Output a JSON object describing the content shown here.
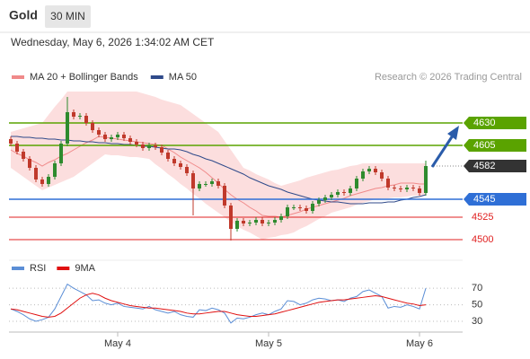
{
  "header": {
    "symbol": "Gold",
    "interval": "30 MIN",
    "date": "Wednesday, May 6, 2026 1:34:02 AM CET",
    "source": "Research © 2026 Trading Central"
  },
  "chart_data": [
    {
      "type": "candlestick",
      "categories": [
        null,
        null,
        null,
        null,
        null,
        null,
        null,
        null,
        null,
        null,
        null,
        null,
        null,
        null,
        null,
        null,
        null,
        "May 4",
        null,
        null,
        null,
        null,
        null,
        null,
        null,
        null,
        null,
        null,
        null,
        null,
        null,
        null,
        null,
        null,
        null,
        null,
        null,
        null,
        null,
        null,
        null,
        "May 5",
        null,
        null,
        null,
        null,
        null,
        null,
        null,
        null,
        null,
        null,
        null,
        null,
        null,
        null,
        null,
        null,
        null,
        null,
        null,
        null,
        null,
        null,
        null,
        "May 6",
        null
      ],
      "open": [
        4612,
        4607,
        4598,
        4590,
        4580,
        4567,
        4562,
        4570,
        4585,
        4607,
        4642,
        4637,
        4638,
        4630,
        4622,
        4617,
        4612,
        4614,
        4617,
        4613,
        4609,
        4606,
        4602,
        4605,
        4603,
        4597,
        4590,
        4585,
        4581,
        4574,
        4557,
        4562,
        4562,
        4565,
        4560,
        4538,
        4512,
        4521,
        4518,
        4519,
        4522,
        4518,
        4519,
        4522,
        4526,
        4536,
        4536,
        4535,
        4532,
        4540,
        4544,
        4547,
        4550,
        4553,
        4552,
        4557,
        4568,
        4576,
        4579,
        4575,
        4568,
        4558,
        4557,
        4556,
        4558,
        4557,
        4552
      ],
      "high": [
        4615,
        4610,
        4601,
        4593,
        4583,
        4570,
        4573,
        4588,
        4610,
        4659,
        4645,
        4641,
        4641,
        4633,
        4625,
        4620,
        4617,
        4620,
        4620,
        4616,
        4612,
        4609,
        4608,
        4608,
        4606,
        4600,
        4593,
        4588,
        4584,
        4577,
        4565,
        4565,
        4568,
        4568,
        4563,
        4541,
        4524,
        4524,
        4522,
        4525,
        4525,
        4522,
        4525,
        4529,
        4539,
        4539,
        4539,
        4538,
        4543,
        4547,
        4550,
        4553,
        4556,
        4556,
        4560,
        4571,
        4579,
        4582,
        4582,
        4578,
        4571,
        4561,
        4560,
        4561,
        4561,
        4560,
        4588
      ],
      "low": [
        4604,
        4595,
        4587,
        4577,
        4564,
        4559,
        4559,
        4567,
        4582,
        4604,
        4634,
        4634,
        4627,
        4619,
        4614,
        4609,
        4609,
        4611,
        4610,
        4606,
        4603,
        4599,
        4599,
        4600,
        4594,
        4587,
        4582,
        4578,
        4571,
        4527,
        4554,
        4559,
        4559,
        4557,
        4535,
        4499,
        4509,
        4515,
        4515,
        4516,
        4515,
        4515,
        4516,
        4519,
        4523,
        4533,
        4532,
        4529,
        4529,
        4537,
        4541,
        4544,
        4547,
        4549,
        4549,
        4554,
        4565,
        4573,
        4572,
        4565,
        4555,
        4554,
        4553,
        4553,
        4554,
        4549,
        4549
      ],
      "close": [
        4607,
        4598,
        4590,
        4580,
        4567,
        4562,
        4570,
        4585,
        4607,
        4642,
        4637,
        4638,
        4630,
        4622,
        4617,
        4612,
        4614,
        4617,
        4613,
        4609,
        4606,
        4602,
        4605,
        4603,
        4597,
        4590,
        4585,
        4581,
        4574,
        4557,
        4562,
        4562,
        4565,
        4560,
        4538,
        4512,
        4521,
        4518,
        4519,
        4522,
        4518,
        4519,
        4522,
        4526,
        4536,
        4536,
        4535,
        4532,
        4540,
        4544,
        4547,
        4550,
        4553,
        4552,
        4557,
        4568,
        4576,
        4579,
        4575,
        4568,
        4558,
        4557,
        4556,
        4558,
        4557,
        4552,
        4582
      ],
      "up_color": "#2e8b2e",
      "down_color": "#c0392b",
      "ylim": [
        4482,
        4672
      ],
      "overlays": [
        {
          "name": "MA 20 + Bollinger Bands",
          "color": "#f08a8a",
          "band_color": "#fcdede",
          "values": [
            4600,
            4596,
            4593,
            4589,
            4586,
            4582,
            4586,
            4589,
            4593,
            4596,
            4600,
            4604,
            4608,
            4611,
            4615,
            4614,
            4613,
            4612,
            4611,
            4610,
            4609,
            4608,
            4607,
            4606,
            4605,
            4601,
            4597,
            4592,
            4588,
            4584,
            4580,
            4575,
            4569,
            4563,
            4556,
            4550,
            4545,
            4541,
            4536,
            4532,
            4527,
            4526,
            4526,
            4525,
            4527,
            4529,
            4531,
            4534,
            4536,
            4538,
            4540,
            4542,
            4544,
            4546,
            4549,
            4551,
            4553,
            4555,
            4557,
            4558,
            4560,
            4561,
            4563,
            4563,
            4563,
            4562,
            4562
          ],
          "upper": [
            4620,
            4622,
            4624,
            4626,
            4628,
            4630,
            4639,
            4648,
            4656,
            4665,
            4665,
            4665,
            4665,
            4665,
            4665,
            4665,
            4665,
            4665,
            4665,
            4665,
            4665,
            4663,
            4661,
            4659,
            4656,
            4654,
            4652,
            4650,
            4645,
            4640,
            4635,
            4630,
            4625,
            4620,
            4610,
            4600,
            4590,
            4580,
            4577,
            4573,
            4570,
            4567,
            4563,
            4560,
            4562,
            4564,
            4566,
            4569,
            4571,
            4573,
            4575,
            4577,
            4578,
            4580,
            4582,
            4583,
            4585,
            4585,
            4585,
            4585,
            4585,
            4585,
            4585,
            4585,
            4585,
            4585,
            4585
          ],
          "lower": [
            4580,
            4575,
            4570,
            4565,
            4560,
            4555,
            4558,
            4561,
            4564,
            4567,
            4570,
            4575,
            4580,
            4585,
            4590,
            4595,
            4594,
            4594,
            4593,
            4592,
            4592,
            4591,
            4590,
            4584,
            4579,
            4573,
            4568,
            4562,
            4557,
            4551,
            4546,
            4540,
            4535,
            4530,
            4525,
            4520,
            4515,
            4511,
            4508,
            4504,
            4500,
            4502,
            4503,
            4505,
            4506,
            4508,
            4512,
            4515,
            4519,
            4523,
            4526,
            4530,
            4532,
            4534,
            4536,
            4539,
            4541,
            4543,
            4545,
            4546,
            4546,
            4547,
            4547,
            4548,
            4549,
            4549,
            4550
          ]
        },
        {
          "name": "MA 50",
          "color": "#2f4a8a",
          "values": [
            4615,
            4615,
            4614,
            4614,
            4613,
            4613,
            4612,
            4612,
            4611,
            4611,
            4610,
            4610,
            4609,
            4609,
            4608,
            4608,
            4607,
            4607,
            4606,
            4606,
            4605,
            4604,
            4604,
            4603,
            4602,
            4601,
            4601,
            4600,
            4598,
            4595,
            4593,
            4590,
            4588,
            4585,
            4582,
            4579,
            4576,
            4573,
            4569,
            4566,
            4563,
            4560,
            4558,
            4556,
            4553,
            4551,
            4549,
            4547,
            4545,
            4544,
            4543,
            4542,
            4542,
            4541,
            4540,
            4540,
            4540,
            4541,
            4541,
            4541,
            4542,
            4542,
            4544,
            4545,
            4547,
            4548,
            4550
          ]
        }
      ],
      "levels": [
        {
          "value": 4630,
          "color": "#5aa300",
          "style": "box"
        },
        {
          "value": 4605,
          "color": "#5aa300",
          "style": "box"
        },
        {
          "value": 4582,
          "color": "#333333",
          "style": "current"
        },
        {
          "value": 4545,
          "color": "#2f6fd6",
          "style": "box"
        },
        {
          "value": 4525,
          "color": "#e02020",
          "style": "text"
        },
        {
          "value": 4500,
          "color": "#e02020",
          "style": "text"
        }
      ]
    },
    {
      "type": "line",
      "series": [
        {
          "name": "RSI",
          "color": "#5b8ed6",
          "values": [
            45,
            42,
            38,
            33,
            30,
            32,
            35,
            45,
            60,
            75,
            70,
            66,
            62,
            55,
            56,
            52,
            50,
            52,
            48,
            47,
            46,
            45,
            48,
            44,
            42,
            40,
            42,
            38,
            36,
            35,
            44,
            43,
            46,
            44,
            40,
            28,
            34,
            33,
            35,
            38,
            40,
            38,
            42,
            45,
            55,
            54,
            50,
            52,
            56,
            58,
            57,
            55,
            56,
            54,
            58,
            60,
            66,
            68,
            64,
            60,
            46,
            48,
            47,
            50,
            48,
            45,
            70
          ]
        },
        {
          "name": "9MA",
          "color": "#e01010",
          "values": [
            45,
            44,
            42,
            40,
            38,
            36,
            35,
            36,
            40,
            46,
            52,
            58,
            62,
            64,
            62,
            58,
            55,
            53,
            51,
            49,
            48,
            47,
            46,
            46,
            45,
            44,
            43,
            42,
            40,
            39,
            39,
            40,
            41,
            42,
            42,
            40,
            38,
            37,
            36,
            36,
            37,
            38,
            39,
            41,
            43,
            45,
            47,
            49,
            51,
            53,
            54,
            55,
            56,
            56,
            57,
            58,
            59,
            60,
            61,
            60,
            58,
            56,
            54,
            52,
            51,
            49,
            50
          ]
        }
      ],
      "ylim": [
        17,
        93
      ],
      "yticks": [
        30,
        50,
        70
      ],
      "grid": true
    }
  ]
}
